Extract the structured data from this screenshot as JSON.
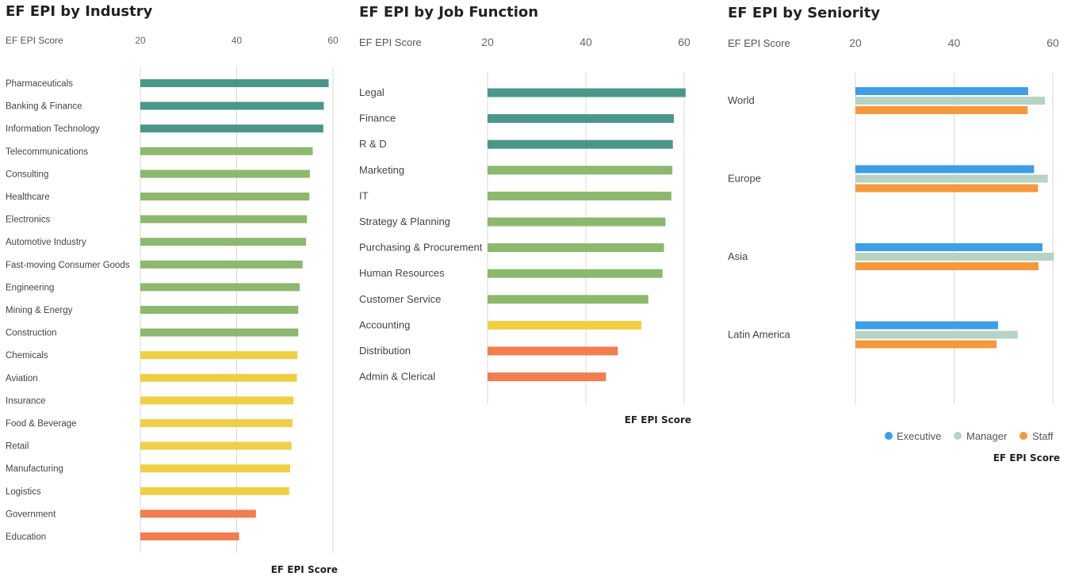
{
  "chart_data": [
    {
      "type": "bar",
      "orientation": "horizontal",
      "title": "EF EPI by Industry",
      "axis_label": "EF EPI Score",
      "xlabel": "EF EPI Score",
      "ylabel": "",
      "xlim": [
        20,
        60
      ],
      "ticks": [
        20,
        40,
        60
      ],
      "grid": true,
      "categories": [
        "Pharmaceuticals",
        "Banking & Finance",
        "Information Technology",
        "Telecommunications",
        "Consulting",
        "Healthcare",
        "Electronics",
        "Automotive Industry",
        "Fast-moving Consumer Goods",
        "Engineering",
        "Mining & Energy",
        "Construction",
        "Chemicals",
        "Aviation",
        "Insurance",
        "Food & Beverage",
        "Retail",
        "Manufacturing",
        "Logistics",
        "Government",
        "Education"
      ],
      "values": [
        59.1,
        58.1,
        58.0,
        55.8,
        55.2,
        55.1,
        54.6,
        54.4,
        53.7,
        53.1,
        52.8,
        52.8,
        52.6,
        52.5,
        51.8,
        51.6,
        51.4,
        51.1,
        50.9,
        44.0,
        40.5
      ],
      "colors": [
        "#4a978a",
        "#4a978a",
        "#4a978a",
        "#8db86e",
        "#8db86e",
        "#8db86e",
        "#8db86e",
        "#8db86e",
        "#8db86e",
        "#8db86e",
        "#8db86e",
        "#8db86e",
        "#efcf45",
        "#efcf45",
        "#efcf45",
        "#efcf45",
        "#efcf45",
        "#efcf45",
        "#efcf45",
        "#f07e50",
        "#f07e50"
      ]
    },
    {
      "type": "bar",
      "orientation": "horizontal",
      "title": "EF EPI by Job Function",
      "axis_label": "EF EPI Score",
      "xlabel": "EF EPI Score",
      "ylabel": "",
      "xlim": [
        20,
        60
      ],
      "ticks": [
        20,
        40,
        60
      ],
      "grid": true,
      "categories": [
        "Legal",
        "Finance",
        "R & D",
        "Marketing",
        "IT",
        "Strategy & Planning",
        "Purchasing & Procurement",
        "Human Resources",
        "Customer Service",
        "Accounting",
        "Distribution",
        "Admin & Clerical"
      ],
      "values": [
        60.3,
        57.9,
        57.7,
        57.6,
        57.4,
        56.2,
        55.9,
        55.6,
        52.7,
        51.3,
        46.5,
        44.1
      ],
      "colors": [
        "#4a978a",
        "#4a978a",
        "#4a978a",
        "#8db86e",
        "#8db86e",
        "#8db86e",
        "#8db86e",
        "#8db86e",
        "#8db86e",
        "#efcf45",
        "#f07e50",
        "#f07e50"
      ]
    },
    {
      "type": "bar",
      "orientation": "horizontal",
      "title": "EF EPI by Seniority",
      "axis_label": "EF EPI Score",
      "xlabel": "EF EPI Score",
      "ylabel": "",
      "xlim": [
        20,
        60
      ],
      "ticks": [
        20,
        40,
        60
      ],
      "grid": true,
      "legend_position": "bottom-right",
      "categories": [
        "World",
        "Europe",
        "Asia",
        "Latin America"
      ],
      "series": [
        {
          "name": "Executive",
          "color": "#3e9ee6",
          "values": [
            55.0,
            56.2,
            57.9,
            48.9
          ]
        },
        {
          "name": "Manager",
          "color": "#b6d3c3",
          "values": [
            58.4,
            59.0,
            60.2,
            52.9
          ]
        },
        {
          "name": "Staff",
          "color": "#f6983d",
          "values": [
            54.9,
            57.0,
            57.1,
            48.6
          ]
        }
      ]
    }
  ]
}
